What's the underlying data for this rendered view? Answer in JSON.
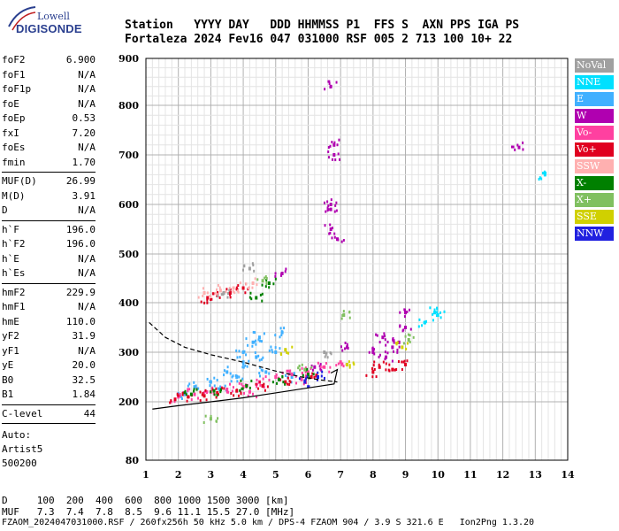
{
  "logo": {
    "line1": "Lowell",
    "line2": "DIGISONDE"
  },
  "header": {
    "labels": "Station   YYYY DAY   DDD HHMMSS P1  FFS S  AXN PPS IGA PS",
    "values": "Fortaleza 2024 Fev16 047 031000 RSF 005 2 713 100 10+ 22"
  },
  "params": [
    {
      "key": "foF2",
      "value": "6.900"
    },
    {
      "key": "foF1",
      "value": "N/A"
    },
    {
      "key": "foF1p",
      "value": "N/A"
    },
    {
      "key": "foE",
      "value": "N/A"
    },
    {
      "key": "foEp",
      "value": "0.53"
    },
    {
      "key": "fxI",
      "value": "7.20"
    },
    {
      "key": "foEs",
      "value": "N/A"
    },
    {
      "key": "fmin",
      "value": "1.70"
    },
    {
      "key": "MUF(D)",
      "value": "26.99"
    },
    {
      "key": "M(D)",
      "value": "3.91"
    },
    {
      "key": "D",
      "value": "N/A"
    },
    {
      "key": "h`F",
      "value": "196.0"
    },
    {
      "key": "h`F2",
      "value": "196.0"
    },
    {
      "key": "h`E",
      "value": "N/A"
    },
    {
      "key": "h`Es",
      "value": "N/A"
    },
    {
      "key": "hmF2",
      "value": "229.9"
    },
    {
      "key": "hmF1",
      "value": "N/A"
    },
    {
      "key": "hmE",
      "value": "110.0"
    },
    {
      "key": "yF2",
      "value": "31.9"
    },
    {
      "key": "yF1",
      "value": "N/A"
    },
    {
      "key": "yE",
      "value": "20.0"
    },
    {
      "key": "B0",
      "value": "32.5"
    },
    {
      "key": "B1",
      "value": "1.84"
    },
    {
      "key": "C-level",
      "value": "44"
    }
  ],
  "auto": {
    "line1": "Auto:",
    "line2": "Artist5",
    "line3": "500200"
  },
  "legend": [
    {
      "label": "NoVal",
      "color": "#a0a0a0"
    },
    {
      "label": "NNE",
      "color": "#00e0ff"
    },
    {
      "label": "E",
      "color": "#40b0ff"
    },
    {
      "label": "W",
      "color": "#b000b0"
    },
    {
      "label": "Vo-",
      "color": "#ff40a0"
    },
    {
      "label": "Vo+",
      "color": "#e00020"
    },
    {
      "label": "SSW",
      "color": "#ffb0b0"
    },
    {
      "label": "X-",
      "color": "#008000"
    },
    {
      "label": "X+",
      "color": "#80c060"
    },
    {
      "label": "SSE",
      "color": "#d0d000"
    },
    {
      "label": "NNW",
      "color": "#2020e0"
    }
  ],
  "bottom": {
    "d_line": "D     100  200  400  600  800 1000 1500 3000 [km]",
    "muf_line": "MUF   7.3  7.4  7.8  8.5  9.6 11.1 15.5 27.0 [MHz]"
  },
  "footer": "FZAOM_2024047031000.RSF / 260fx256h 50 kHz 5.0 km / DPS-4 FZAOM 904 / 3.9 S 321.6 E   Ion2Png 1.3.20",
  "chart_data": {
    "type": "scatter",
    "xlim": [
      1,
      14
    ],
    "ylim": [
      80,
      900
    ],
    "x_ticks": [
      "1",
      "2",
      "3",
      "4",
      "5",
      "6",
      "7",
      "8",
      "9",
      "10",
      "11",
      "12",
      "13",
      "14"
    ],
    "y_ticks": [
      "80",
      "200",
      "300",
      "400",
      "500",
      "600",
      "700",
      "800",
      "900"
    ],
    "grid": true,
    "clusters": [
      {
        "name": "NNE",
        "color": "#00e0ff",
        "points": [
          [
            9.6,
            360
          ],
          [
            9.9,
            380
          ],
          [
            10.0,
            375
          ],
          [
            13.3,
            660
          ]
        ]
      },
      {
        "name": "E",
        "color": "#40b0ff",
        "points": [
          [
            2.5,
            230
          ],
          [
            3.0,
            240
          ],
          [
            3.5,
            260
          ],
          [
            4.0,
            300
          ],
          [
            4.3,
            320
          ],
          [
            4.5,
            330
          ],
          [
            5.0,
            300
          ],
          [
            5.2,
            340
          ],
          [
            4.7,
            260
          ],
          [
            3.8,
            250
          ],
          [
            4.0,
            280
          ],
          [
            4.4,
            290
          ],
          [
            5.5,
            250
          ],
          [
            2.2,
            215
          ],
          [
            3.3,
            225
          ]
        ]
      },
      {
        "name": "W",
        "color": "#b000b0",
        "points": [
          [
            6.7,
            840
          ],
          [
            6.8,
            720
          ],
          [
            6.8,
            700
          ],
          [
            6.7,
            590
          ],
          [
            6.9,
            530
          ],
          [
            6.7,
            550
          ],
          [
            6.7,
            600
          ],
          [
            8.0,
            300
          ],
          [
            8.4,
            290
          ],
          [
            8.6,
            310
          ],
          [
            8.3,
            330
          ],
          [
            8.8,
            320
          ],
          [
            9.0,
            350
          ],
          [
            9.0,
            380
          ],
          [
            12.5,
            715
          ],
          [
            5.2,
            460
          ],
          [
            6.2,
            270
          ],
          [
            7.2,
            310
          ]
        ]
      },
      {
        "name": "Vo-",
        "color": "#ff40a0",
        "points": [
          [
            2.0,
            210
          ],
          [
            2.5,
            215
          ],
          [
            3.0,
            220
          ],
          [
            3.5,
            225
          ],
          [
            4.0,
            230
          ],
          [
            4.5,
            240
          ],
          [
            5.0,
            250
          ],
          [
            5.5,
            255
          ],
          [
            6.0,
            260
          ],
          [
            6.5,
            270
          ],
          [
            7.0,
            280
          ],
          [
            4.2,
            220
          ],
          [
            5.8,
            245
          ]
        ]
      },
      {
        "name": "Vo+",
        "color": "#e00020",
        "points": [
          [
            1.9,
            205
          ],
          [
            2.3,
            210
          ],
          [
            2.8,
            212
          ],
          [
            3.2,
            218
          ],
          [
            3.8,
            222
          ],
          [
            4.6,
            232
          ],
          [
            5.3,
            240
          ],
          [
            6.1,
            250
          ],
          [
            8.0,
            260
          ],
          [
            8.2,
            270
          ],
          [
            8.6,
            265
          ],
          [
            9.0,
            275
          ],
          [
            2.9,
            410
          ],
          [
            3.2,
            415
          ],
          [
            3.6,
            420
          ],
          [
            4.0,
            430
          ]
        ]
      },
      {
        "name": "SSW",
        "color": "#ffb0b0",
        "points": [
          [
            2.8,
            420
          ],
          [
            3.3,
            425
          ],
          [
            3.7,
            430
          ],
          [
            4.3,
            440
          ]
        ]
      },
      {
        "name": "X-",
        "color": "#008000",
        "points": [
          [
            2.4,
            215
          ],
          [
            3.1,
            222
          ],
          [
            4.1,
            232
          ],
          [
            5.1,
            245
          ],
          [
            6.0,
            255
          ],
          [
            4.4,
            410
          ],
          [
            4.8,
            440
          ]
        ]
      },
      {
        "name": "X+",
        "color": "#80c060",
        "points": [
          [
            3.0,
            165
          ],
          [
            4.6,
            445
          ],
          [
            7.1,
            375
          ],
          [
            9.1,
            325
          ],
          [
            5.9,
            265
          ]
        ]
      },
      {
        "name": "SSE",
        "color": "#d0d000",
        "points": [
          [
            5.3,
            305
          ],
          [
            7.2,
            275
          ],
          [
            8.9,
            310
          ]
        ]
      },
      {
        "name": "NNW",
        "color": "#2020e0",
        "points": [
          [
            5.9,
            240
          ],
          [
            6.3,
            250
          ]
        ]
      },
      {
        "name": "NoVal",
        "color": "#a0a0a0",
        "points": [
          [
            3.4,
            420
          ],
          [
            4.2,
            470
          ],
          [
            6.5,
            300
          ]
        ]
      }
    ],
    "profile_dashed": [
      [
        1.1,
        360
      ],
      [
        1.6,
        330
      ],
      [
        2.2,
        310
      ],
      [
        3.0,
        295
      ],
      [
        4.0,
        280
      ],
      [
        5.0,
        262
      ],
      [
        5.8,
        250
      ],
      [
        6.4,
        244
      ],
      [
        6.9,
        240
      ]
    ],
    "trace_solid": [
      [
        1.2,
        185
      ],
      [
        2.0,
        192
      ],
      [
        3.0,
        200
      ],
      [
        4.0,
        208
      ],
      [
        5.0,
        218
      ],
      [
        6.0,
        228
      ],
      [
        6.8,
        236
      ],
      [
        6.9,
        265
      ],
      [
        6.7,
        258
      ]
    ]
  }
}
